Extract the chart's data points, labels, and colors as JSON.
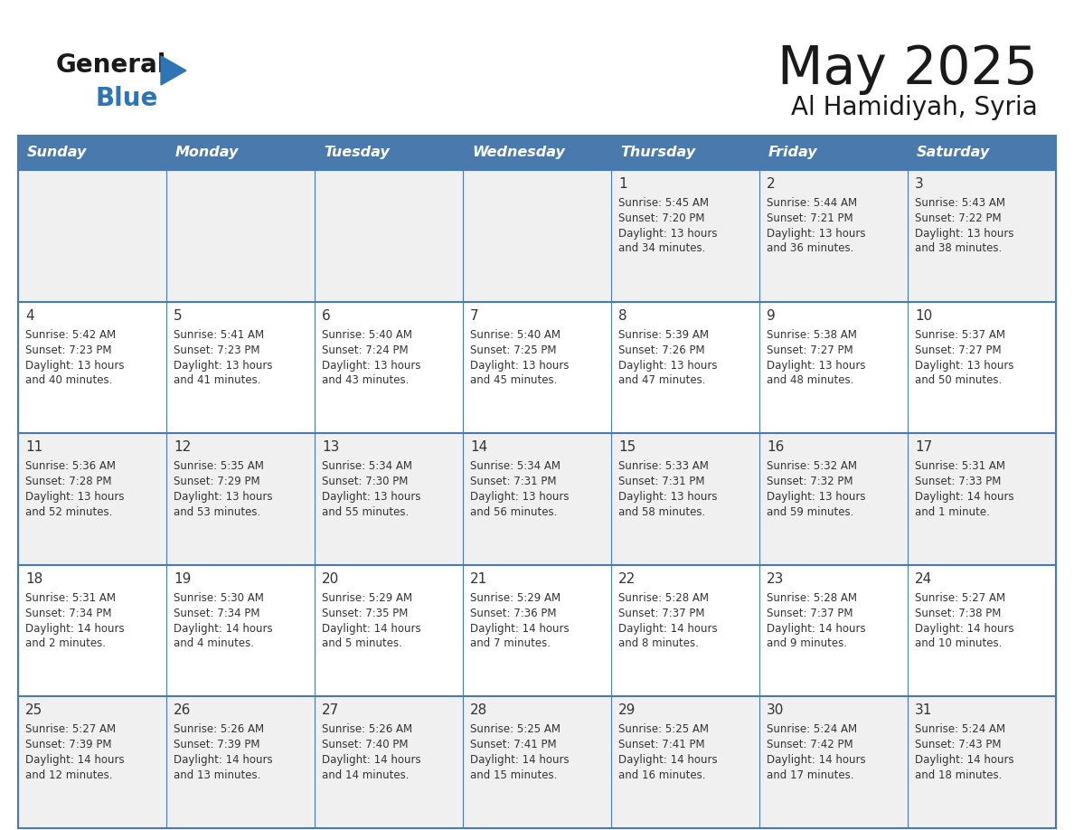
{
  "title": "May 2025",
  "subtitle": "Al Hamidiyah, Syria",
  "days_of_week": [
    "Sunday",
    "Monday",
    "Tuesday",
    "Wednesday",
    "Thursday",
    "Friday",
    "Saturday"
  ],
  "header_bg_color": "#4a7aad",
  "header_text_color": "#ffffff",
  "row_bg_colors": [
    "#f0f0f0",
    "#ffffff",
    "#f0f0f0",
    "#ffffff",
    "#f0f0f0"
  ],
  "day_number_color": "#333333",
  "info_text_color": "#333333",
  "border_color": "#4a7aad",
  "logo_general_color": "#1a1a1a",
  "logo_blue_color": "#2e75b6",
  "title_color": "#1a1a1a",
  "weeks": [
    [
      {
        "day": "",
        "sunrise": "",
        "sunset": "",
        "daylight": ""
      },
      {
        "day": "",
        "sunrise": "",
        "sunset": "",
        "daylight": ""
      },
      {
        "day": "",
        "sunrise": "",
        "sunset": "",
        "daylight": ""
      },
      {
        "day": "",
        "sunrise": "",
        "sunset": "",
        "daylight": ""
      },
      {
        "day": "1",
        "sunrise": "Sunrise: 5:45 AM",
        "sunset": "Sunset: 7:20 PM",
        "daylight": "Daylight: 13 hours\nand 34 minutes."
      },
      {
        "day": "2",
        "sunrise": "Sunrise: 5:44 AM",
        "sunset": "Sunset: 7:21 PM",
        "daylight": "Daylight: 13 hours\nand 36 minutes."
      },
      {
        "day": "3",
        "sunrise": "Sunrise: 5:43 AM",
        "sunset": "Sunset: 7:22 PM",
        "daylight": "Daylight: 13 hours\nand 38 minutes."
      }
    ],
    [
      {
        "day": "4",
        "sunrise": "Sunrise: 5:42 AM",
        "sunset": "Sunset: 7:23 PM",
        "daylight": "Daylight: 13 hours\nand 40 minutes."
      },
      {
        "day": "5",
        "sunrise": "Sunrise: 5:41 AM",
        "sunset": "Sunset: 7:23 PM",
        "daylight": "Daylight: 13 hours\nand 41 minutes."
      },
      {
        "day": "6",
        "sunrise": "Sunrise: 5:40 AM",
        "sunset": "Sunset: 7:24 PM",
        "daylight": "Daylight: 13 hours\nand 43 minutes."
      },
      {
        "day": "7",
        "sunrise": "Sunrise: 5:40 AM",
        "sunset": "Sunset: 7:25 PM",
        "daylight": "Daylight: 13 hours\nand 45 minutes."
      },
      {
        "day": "8",
        "sunrise": "Sunrise: 5:39 AM",
        "sunset": "Sunset: 7:26 PM",
        "daylight": "Daylight: 13 hours\nand 47 minutes."
      },
      {
        "day": "9",
        "sunrise": "Sunrise: 5:38 AM",
        "sunset": "Sunset: 7:27 PM",
        "daylight": "Daylight: 13 hours\nand 48 minutes."
      },
      {
        "day": "10",
        "sunrise": "Sunrise: 5:37 AM",
        "sunset": "Sunset: 7:27 PM",
        "daylight": "Daylight: 13 hours\nand 50 minutes."
      }
    ],
    [
      {
        "day": "11",
        "sunrise": "Sunrise: 5:36 AM",
        "sunset": "Sunset: 7:28 PM",
        "daylight": "Daylight: 13 hours\nand 52 minutes."
      },
      {
        "day": "12",
        "sunrise": "Sunrise: 5:35 AM",
        "sunset": "Sunset: 7:29 PM",
        "daylight": "Daylight: 13 hours\nand 53 minutes."
      },
      {
        "day": "13",
        "sunrise": "Sunrise: 5:34 AM",
        "sunset": "Sunset: 7:30 PM",
        "daylight": "Daylight: 13 hours\nand 55 minutes."
      },
      {
        "day": "14",
        "sunrise": "Sunrise: 5:34 AM",
        "sunset": "Sunset: 7:31 PM",
        "daylight": "Daylight: 13 hours\nand 56 minutes."
      },
      {
        "day": "15",
        "sunrise": "Sunrise: 5:33 AM",
        "sunset": "Sunset: 7:31 PM",
        "daylight": "Daylight: 13 hours\nand 58 minutes."
      },
      {
        "day": "16",
        "sunrise": "Sunrise: 5:32 AM",
        "sunset": "Sunset: 7:32 PM",
        "daylight": "Daylight: 13 hours\nand 59 minutes."
      },
      {
        "day": "17",
        "sunrise": "Sunrise: 5:31 AM",
        "sunset": "Sunset: 7:33 PM",
        "daylight": "Daylight: 14 hours\nand 1 minute."
      }
    ],
    [
      {
        "day": "18",
        "sunrise": "Sunrise: 5:31 AM",
        "sunset": "Sunset: 7:34 PM",
        "daylight": "Daylight: 14 hours\nand 2 minutes."
      },
      {
        "day": "19",
        "sunrise": "Sunrise: 5:30 AM",
        "sunset": "Sunset: 7:34 PM",
        "daylight": "Daylight: 14 hours\nand 4 minutes."
      },
      {
        "day": "20",
        "sunrise": "Sunrise: 5:29 AM",
        "sunset": "Sunset: 7:35 PM",
        "daylight": "Daylight: 14 hours\nand 5 minutes."
      },
      {
        "day": "21",
        "sunrise": "Sunrise: 5:29 AM",
        "sunset": "Sunset: 7:36 PM",
        "daylight": "Daylight: 14 hours\nand 7 minutes."
      },
      {
        "day": "22",
        "sunrise": "Sunrise: 5:28 AM",
        "sunset": "Sunset: 7:37 PM",
        "daylight": "Daylight: 14 hours\nand 8 minutes."
      },
      {
        "day": "23",
        "sunrise": "Sunrise: 5:28 AM",
        "sunset": "Sunset: 7:37 PM",
        "daylight": "Daylight: 14 hours\nand 9 minutes."
      },
      {
        "day": "24",
        "sunrise": "Sunrise: 5:27 AM",
        "sunset": "Sunset: 7:38 PM",
        "daylight": "Daylight: 14 hours\nand 10 minutes."
      }
    ],
    [
      {
        "day": "25",
        "sunrise": "Sunrise: 5:27 AM",
        "sunset": "Sunset: 7:39 PM",
        "daylight": "Daylight: 14 hours\nand 12 minutes."
      },
      {
        "day": "26",
        "sunrise": "Sunrise: 5:26 AM",
        "sunset": "Sunset: 7:39 PM",
        "daylight": "Daylight: 14 hours\nand 13 minutes."
      },
      {
        "day": "27",
        "sunrise": "Sunrise: 5:26 AM",
        "sunset": "Sunset: 7:40 PM",
        "daylight": "Daylight: 14 hours\nand 14 minutes."
      },
      {
        "day": "28",
        "sunrise": "Sunrise: 5:25 AM",
        "sunset": "Sunset: 7:41 PM",
        "daylight": "Daylight: 14 hours\nand 15 minutes."
      },
      {
        "day": "29",
        "sunrise": "Sunrise: 5:25 AM",
        "sunset": "Sunset: 7:41 PM",
        "daylight": "Daylight: 14 hours\nand 16 minutes."
      },
      {
        "day": "30",
        "sunrise": "Sunrise: 5:24 AM",
        "sunset": "Sunset: 7:42 PM",
        "daylight": "Daylight: 14 hours\nand 17 minutes."
      },
      {
        "day": "31",
        "sunrise": "Sunrise: 5:24 AM",
        "sunset": "Sunset: 7:43 PM",
        "daylight": "Daylight: 14 hours\nand 18 minutes."
      }
    ]
  ]
}
